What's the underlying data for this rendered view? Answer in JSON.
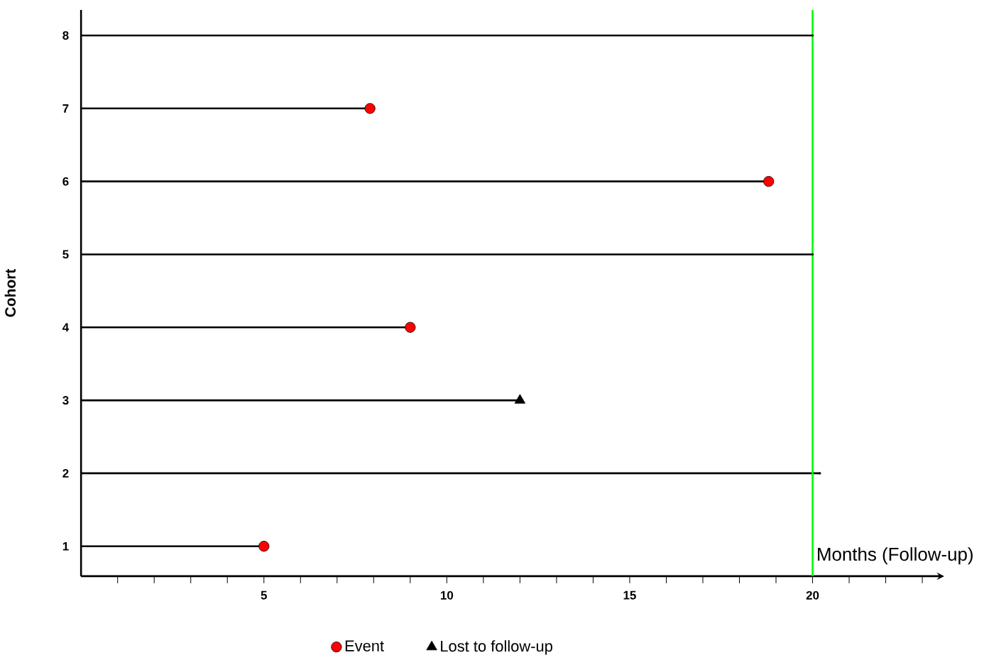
{
  "chart_data": {
    "type": "lollipop",
    "orientation": "horizontal",
    "ylabel": "Cohort",
    "xlabel": "Months (Follow-up)",
    "categories": [
      "8",
      "7",
      "6",
      "5",
      "4",
      "3",
      "2",
      "1"
    ],
    "xlim": [
      0,
      23.6
    ],
    "xticks": [
      {
        "value": 1,
        "label": null
      },
      {
        "value": 2,
        "label": null
      },
      {
        "value": 3,
        "label": null
      },
      {
        "value": 4,
        "label": null
      },
      5,
      {
        "value": 6,
        "label": null
      },
      {
        "value": 7,
        "label": null
      },
      {
        "value": 8,
        "label": null
      },
      {
        "value": 9,
        "label": null
      },
      10,
      {
        "value": 11,
        "label": null
      },
      {
        "value": 12,
        "label": null
      },
      {
        "value": 13,
        "label": null
      },
      {
        "value": 14,
        "label": null
      },
      15,
      {
        "value": 16,
        "label": null
      },
      {
        "value": 17,
        "label": null
      },
      {
        "value": 18,
        "label": null
      },
      {
        "value": 19,
        "label": null
      },
      20,
      {
        "value": 21,
        "label": null
      },
      {
        "value": 22,
        "label": null
      },
      {
        "value": 23,
        "label": null
      }
    ],
    "series": [
      {
        "name": "Event",
        "marker": "circle",
        "color": "#ff0000",
        "values": [
          null,
          7.9,
          18.8,
          null,
          9.0,
          null,
          null,
          5
        ]
      },
      {
        "name": "Lost to follow-up",
        "marker": "triangle",
        "color": "#000000",
        "values": [
          null,
          null,
          null,
          null,
          null,
          12.0,
          null,
          null
        ]
      },
      {
        "marker": "none",
        "color": "#000000",
        "values": [
          20,
          null,
          null,
          20,
          null,
          null,
          20.2,
          null
        ]
      }
    ],
    "ref_lines": [
      {
        "axis": "x",
        "value": 20,
        "color": "#00ff00"
      }
    ],
    "legend": "bottom"
  }
}
